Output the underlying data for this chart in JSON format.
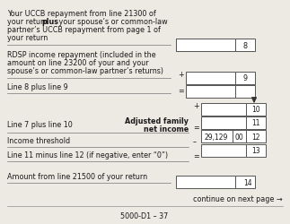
{
  "bg_color": "#ede9e3",
  "text_color": "#1a1a1a",
  "title_footer": "5000-D1 – 37",
  "continue_text": "continue on next page →",
  "line8_text1": "Your UCCB repayment from line 21300 of",
  "line8_text2a": "your return ",
  "line8_text2b": "plus",
  "line8_text2c": " your spouse’s or common-law",
  "line8_text3": "partner’s UCCB repayment from page 1 of",
  "line8_text4": "your return",
  "line9_text1": "RDSP income repayment (included in the",
  "line9_text2": "amount on line 23200 of your and your",
  "line9_text3": "spouse’s or common-law partner’s returns)",
  "line_8plus9": "Line 8 plus line 9",
  "adj_fam1": "Adjusted family",
  "adj_fam2": "net income",
  "line7plus10": "Line 7 plus line 10",
  "income_thresh": "Income threshold",
  "line11minus12": "Line 11 minus line 12 (if negative, enter “0”)",
  "line21500": "Amount from line 21500 of your return",
  "threshold_val": "29,129",
  "threshold_cents": "00",
  "font_size": 5.8,
  "font_size_bold": 5.8,
  "font_size_num": 5.5
}
